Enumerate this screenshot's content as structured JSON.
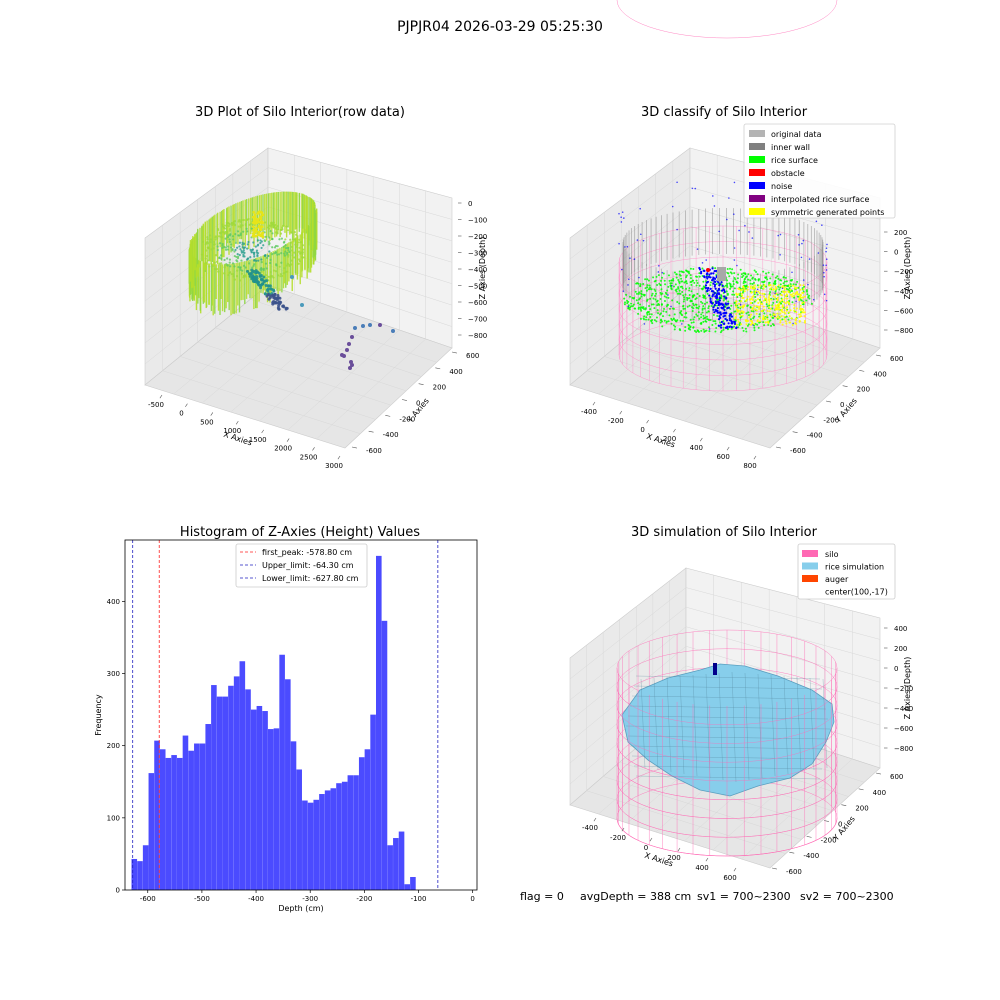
{
  "figure": {
    "suptitle": "PJPJR04 2026-03-29 05:25:30",
    "bottom_text": {
      "flag": "flag = 0",
      "avg_depth": "avgDepth = 388 cm",
      "sv1": "sv1 = 700~2300",
      "sv2": "sv2 = 700~2300"
    }
  },
  "chart_data": [
    {
      "type": "scatter",
      "panel": "3d-raw",
      "title": "3D Plot of Silo Interior(row data)",
      "xlabel": "X Axies",
      "ylabel": "Y Axies",
      "zlabel": "Z Axies (Depth)",
      "x_ticks": [
        "-500",
        "0",
        "500",
        "1000",
        "1500",
        "2000",
        "2500",
        "3000"
      ],
      "y_ticks": [
        "-600",
        "-400",
        "-200",
        "0",
        "200",
        "400",
        "600"
      ],
      "z_ticks": [
        "0",
        "−100",
        "−200",
        "−300",
        "−400",
        "−500",
        "−600",
        "−700",
        "−800"
      ],
      "colormap": "viridis",
      "colors": {
        "high": "#c8e02e",
        "mid": "#2a9d8f",
        "low": "#44337a"
      }
    },
    {
      "type": "scatter",
      "panel": "3d-classify",
      "title": "3D classify of Silo Interior",
      "xlabel": "X Axies",
      "ylabel": "Y Axies",
      "zlabel": "Z Axies (Depth)",
      "x_ticks": [
        "-400",
        "-200",
        "0",
        "200",
        "400",
        "600",
        "800"
      ],
      "y_ticks": [
        "-600",
        "-400",
        "-200",
        "0",
        "200",
        "400",
        "600"
      ],
      "z_ticks": [
        "200",
        "0",
        "−200",
        "−400",
        "−600",
        "−800"
      ],
      "legend_position": "top-right",
      "legend": [
        {
          "label": "original data",
          "color": "#b4b4b4"
        },
        {
          "label": "inner wall",
          "color": "#808080"
        },
        {
          "label": "rice surface",
          "color": "#00ff00"
        },
        {
          "label": "obstacle",
          "color": "#ff0000"
        },
        {
          "label": "noise",
          "color": "#0000ff"
        },
        {
          "label": "interpolated rice surface",
          "color": "#800080"
        },
        {
          "label": "symmetric generated points",
          "color": "#ffff00"
        }
      ]
    },
    {
      "type": "bar",
      "panel": "histogram",
      "title": "Histogram of Z-Axies (Height) Values",
      "xlabel": "Depth (cm)",
      "ylabel": "Frequency",
      "xlim": [
        -642,
        8
      ],
      "ylim": [
        0,
        485
      ],
      "x_ticks": [
        -600,
        -500,
        -400,
        -300,
        -200,
        -100,
        0
      ],
      "y_ticks": [
        0,
        100,
        200,
        300,
        400
      ],
      "bin_start": -630,
      "bin_width": 10.5,
      "frequencies": [
        43,
        40,
        62,
        162,
        207,
        195,
        183,
        187,
        183,
        214,
        193,
        203,
        203,
        230,
        284,
        268,
        268,
        283,
        296,
        317,
        278,
        250,
        255,
        248,
        223,
        224,
        326,
        292,
        206,
        167,
        124,
        121,
        125,
        133,
        138,
        141,
        148,
        150,
        159,
        159,
        184,
        195,
        243,
        463,
        373,
        62,
        72,
        81,
        8,
        18
      ],
      "bar_color": "#4b4bff",
      "legend_position": "top-center",
      "lines": [
        {
          "label": "first_peak: -578.80 cm",
          "value": -578.8,
          "color": "#ff2020"
        },
        {
          "label": "Upper_limit: -64.30 cm",
          "value": -64.3,
          "color": "#2020c0"
        },
        {
          "label": "Lower_limit: -627.80 cm",
          "value": -627.8,
          "color": "#2020c0"
        }
      ]
    },
    {
      "type": "area",
      "panel": "3d-simulation",
      "title": "3D simulation of Silo Interior",
      "xlabel": "X Axies",
      "ylabel": "Y Axies",
      "zlabel": "Z Axies (Depth)",
      "x_ticks": [
        "-400",
        "-200",
        "0",
        "200",
        "400",
        "600"
      ],
      "y_ticks": [
        "-600",
        "-400",
        "-200",
        "0",
        "200",
        "400",
        "600"
      ],
      "z_ticks": [
        "400",
        "200",
        "0",
        "−200",
        "−400",
        "−600",
        "−800"
      ],
      "legend_position": "top-right",
      "legend": [
        {
          "label": "silo",
          "color": "#ff69b4"
        },
        {
          "label": "rice simulation",
          "color": "#87ceeb"
        },
        {
          "label": "auger",
          "color": "#ff4500"
        },
        {
          "label": "center(100,-17)",
          "color": ""
        }
      ]
    }
  ]
}
